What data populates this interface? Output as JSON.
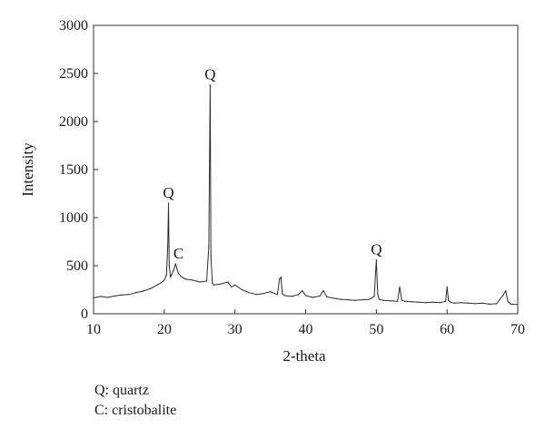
{
  "chart_data": {
    "type": "line",
    "xlabel": "2-theta",
    "ylabel": "Intensity",
    "xlim": [
      10,
      70
    ],
    "ylim": [
      0,
      3000
    ],
    "xticks": [
      10,
      20,
      30,
      40,
      50,
      60,
      70
    ],
    "yticks": [
      0,
      500,
      1000,
      1500,
      2000,
      2500,
      3000
    ],
    "grid": false,
    "series": [
      {
        "x": [
          10,
          11,
          12,
          13,
          14,
          15,
          16,
          17,
          18,
          19,
          19.5,
          20,
          20.3,
          20.5,
          20.6,
          20.7,
          20.9,
          21,
          21.3,
          21.6,
          21.8,
          22,
          22.5,
          23,
          24,
          25,
          26,
          26.3,
          26.5,
          26.6,
          26.8,
          27,
          28,
          29,
          29.5,
          30,
          31,
          32,
          33,
          34,
          35,
          36,
          36.3,
          36.5,
          36.7,
          37,
          38,
          39,
          39.5,
          40,
          41,
          42,
          42.5,
          43,
          44,
          45,
          46,
          47,
          48,
          49,
          49.7,
          50,
          50.2,
          50.4,
          51,
          52,
          53,
          53.3,
          53.6,
          54,
          55,
          56,
          57,
          58,
          59,
          59.8,
          60,
          60.2,
          60.5,
          61,
          62,
          63,
          64,
          65,
          66,
          67,
          68,
          68.3,
          68.6,
          69,
          70
        ],
        "y": [
          165,
          180,
          170,
          185,
          195,
          200,
          220,
          235,
          260,
          300,
          320,
          350,
          400,
          700,
          1150,
          500,
          380,
          400,
          450,
          520,
          470,
          420,
          380,
          360,
          350,
          330,
          340,
          700,
          2380,
          600,
          320,
          300,
          310,
          330,
          280,
          300,
          250,
          220,
          200,
          210,
          230,
          200,
          360,
          380,
          210,
          190,
          180,
          200,
          240,
          190,
          170,
          185,
          240,
          175,
          160,
          150,
          145,
          140,
          145,
          150,
          180,
          560,
          200,
          150,
          140,
          135,
          130,
          280,
          140,
          130,
          125,
          120,
          115,
          120,
          115,
          130,
          280,
          140,
          120,
          110,
          115,
          110,
          105,
          110,
          100,
          105,
          200,
          240,
          130,
          100,
          95
        ]
      }
    ],
    "annotations": [
      {
        "text": "Q",
        "x": 20.6,
        "y": 1150
      },
      {
        "text": "C",
        "x": 21.8,
        "y": 520
      },
      {
        "text": "Q",
        "x": 26.5,
        "y": 2380
      },
      {
        "text": "Q",
        "x": 50.0,
        "y": 560
      }
    ]
  },
  "notes": {
    "line1": "Q: quartz",
    "line2": "C: cristobalite"
  },
  "colors": {
    "trace": "#2b2b2b",
    "axes": "#333333"
  }
}
